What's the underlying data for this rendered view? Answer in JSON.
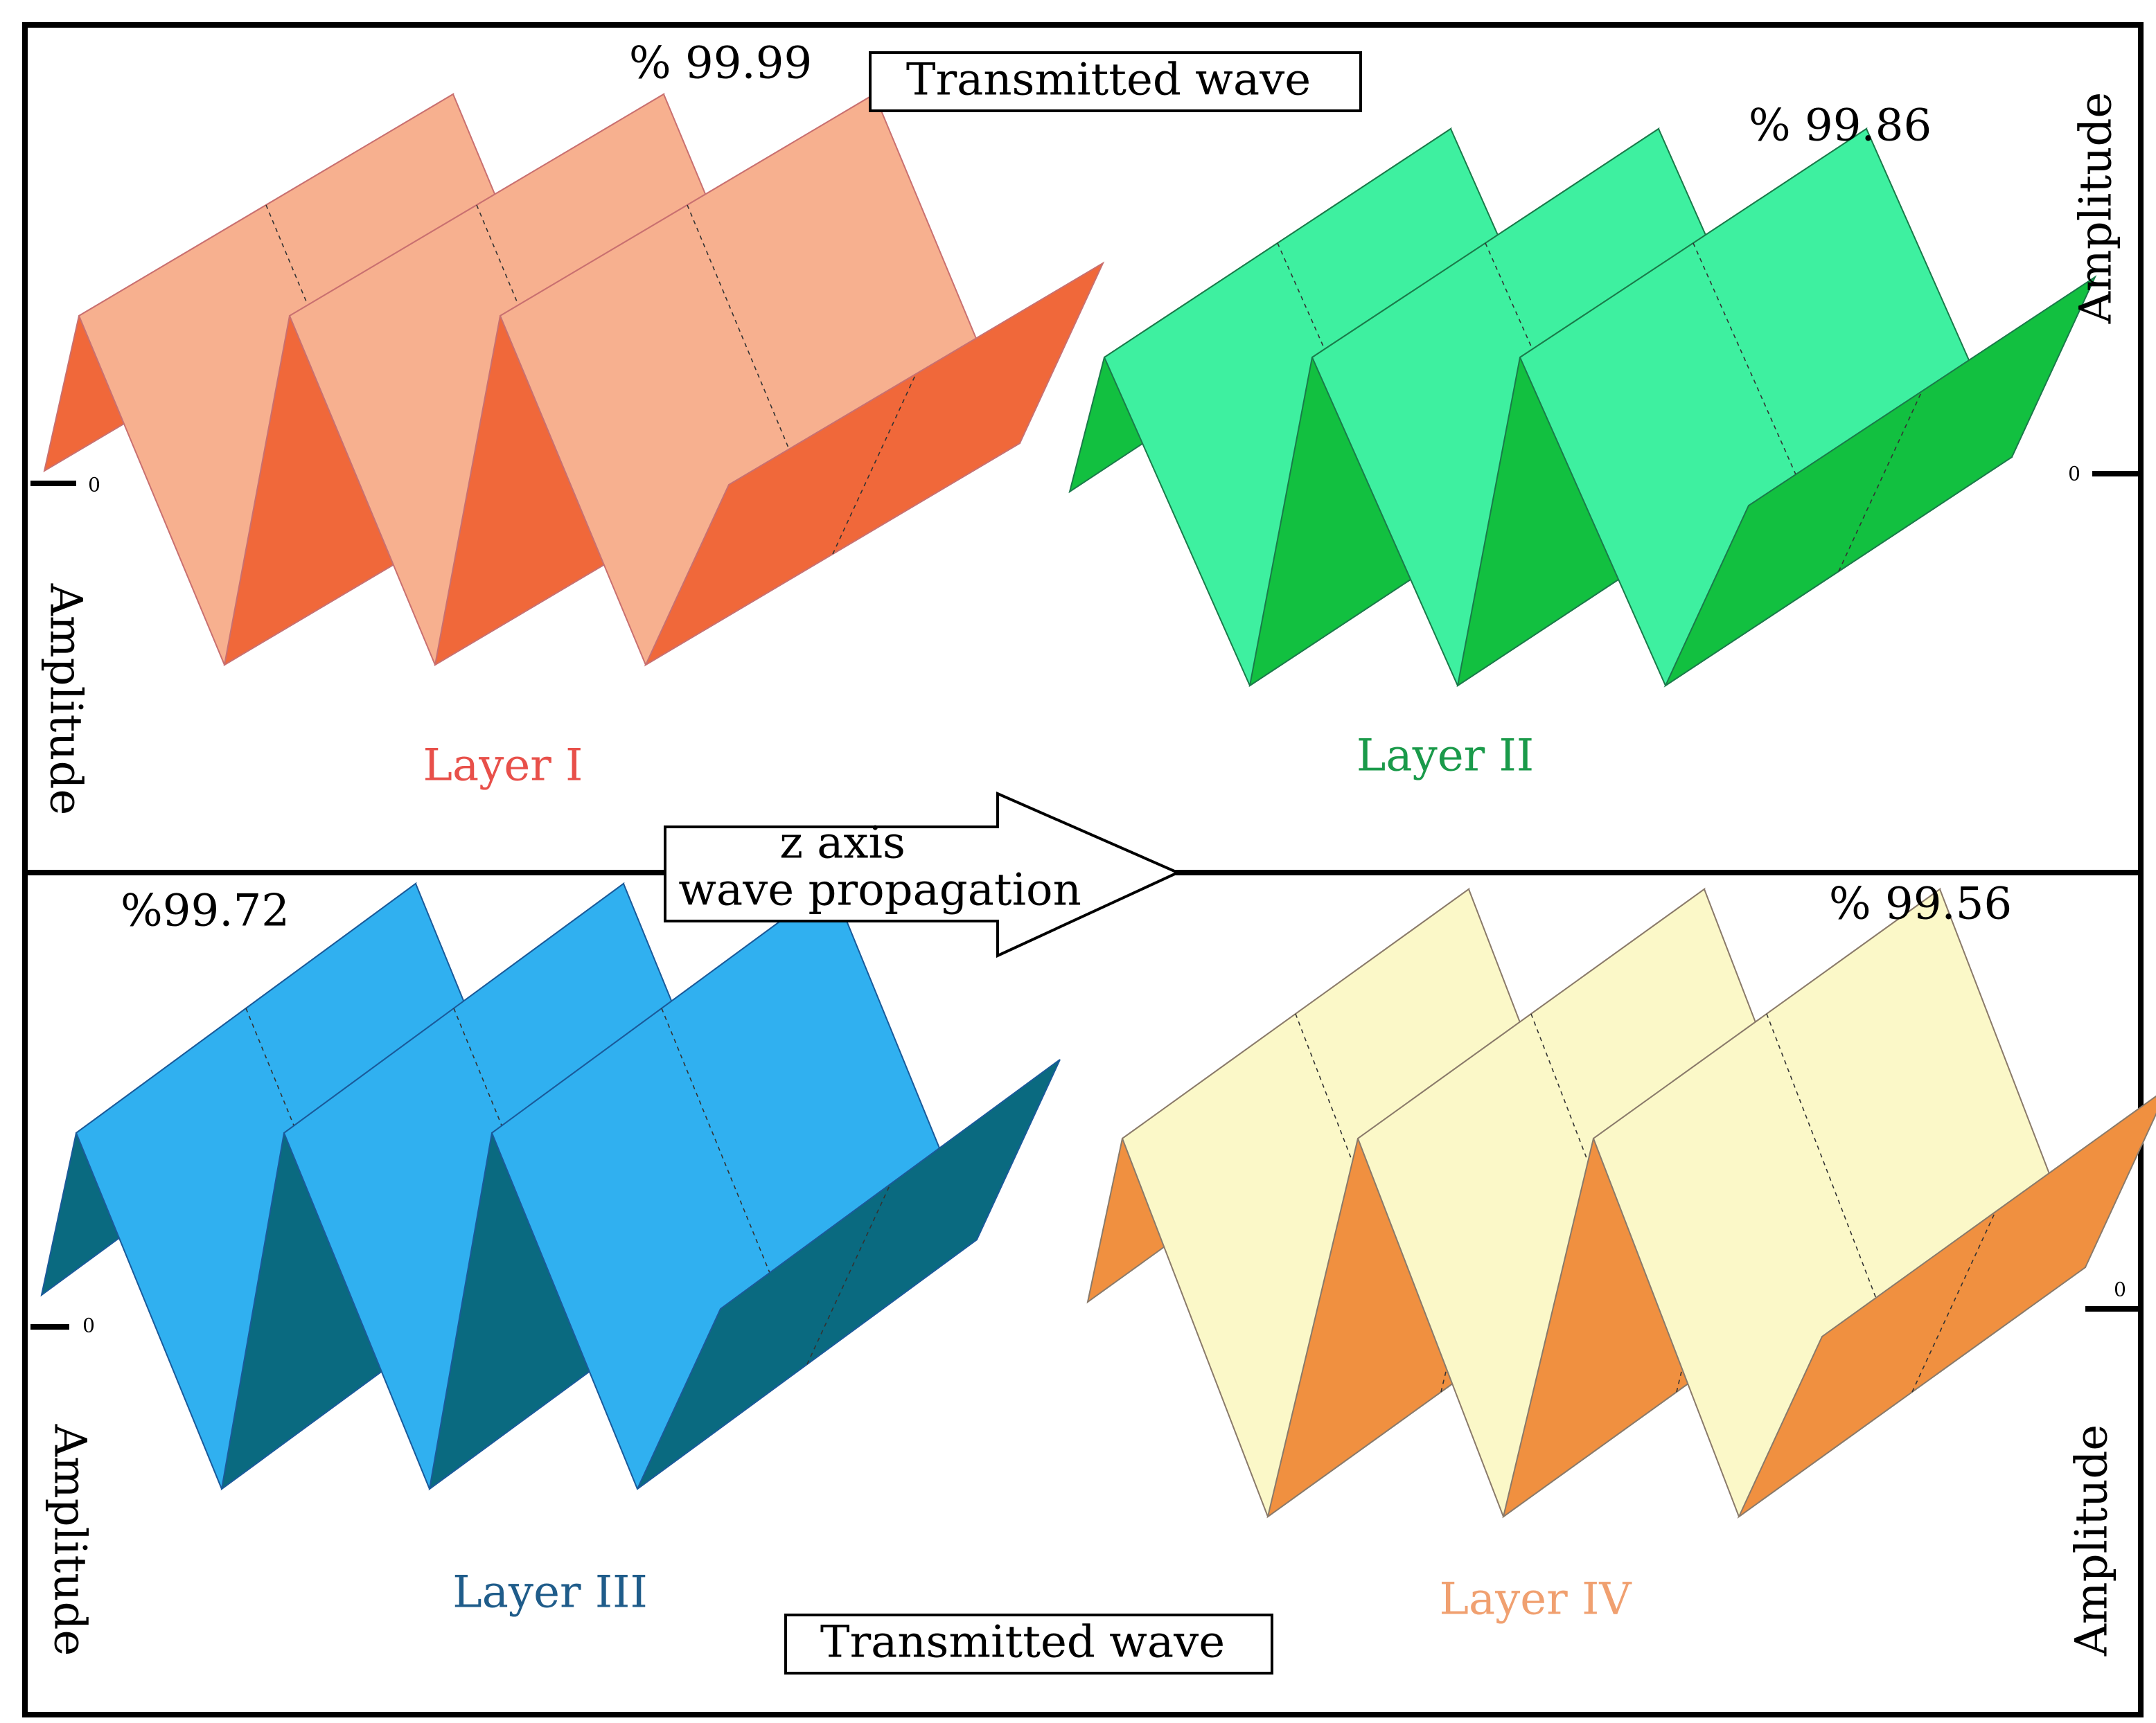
{
  "panels": [
    {
      "label": "Layer I",
      "transmission": "% 99.99",
      "axis_label": "Amplitude",
      "zero": "0"
    },
    {
      "label": "Layer II",
      "transmission": "% 99.86",
      "axis_label": "Amplitude",
      "zero": "0"
    },
    {
      "label": "Layer III",
      "transmission": "%99.72",
      "axis_label": "Amplitude",
      "zero": "0"
    },
    {
      "label": "Layer IV",
      "transmission": "% 99.56",
      "axis_label": "Amplitude",
      "zero": "0"
    }
  ],
  "top_box": "Transmitted wave",
  "bottom_box": "Transmitted wave",
  "arrow": {
    "line1": "z axis",
    "line2": "wave propagation"
  }
}
